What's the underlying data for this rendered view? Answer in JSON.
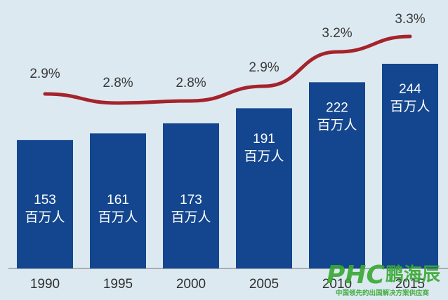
{
  "chart_data": {
    "type": "bar",
    "categories": [
      "1990",
      "1995",
      "2000",
      "2005",
      "2010",
      "2015"
    ],
    "series": [
      {
        "type": "bar",
        "values": [
          153,
          161,
          173,
          191,
          222,
          244
        ],
        "value_labels": [
          "153",
          "161",
          "173",
          "191",
          "222",
          "244"
        ],
        "unit_label": "百万人",
        "color": "#13468e"
      },
      {
        "type": "line",
        "values": [
          2.9,
          2.8,
          2.8,
          2.9,
          3.2,
          3.3
        ],
        "value_labels": [
          "2.9%",
          "2.8%",
          "2.8%",
          "2.9%",
          "3.2%",
          "3.3%"
        ],
        "color": "#a5232b"
      }
    ],
    "title": "",
    "xlabel": "",
    "ylabel": "",
    "grid": false,
    "legend": "none"
  },
  "watermark": {
    "brand": "PHC",
    "brand_cn": "鹏海辰",
    "tagline": "中国领先的出国解决方案供应商",
    "color": "#3aa935"
  }
}
